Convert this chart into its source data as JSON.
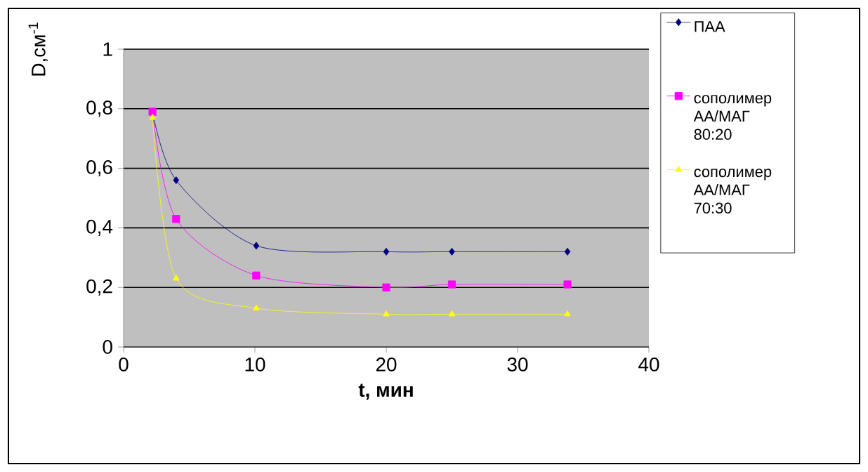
{
  "chart_data": {
    "type": "line",
    "xlabel": "t, мин",
    "ylabel": "D,см$^{-1}$",
    "xlim": [
      0,
      40
    ],
    "xticks": [
      0,
      10,
      20,
      30,
      40
    ],
    "ylim": [
      0,
      1
    ],
    "yticks": [
      0,
      {
        "value": 0.2,
        "label": "0,2"
      },
      {
        "value": 0.4,
        "label": "0,4"
      },
      {
        "value": 0.6,
        "label": "0,6"
      },
      {
        "value": 0.8,
        "label": "0,8"
      },
      1
    ],
    "grid": "y",
    "legend": "right",
    "series": [
      {
        "name": "ПАА",
        "color": "#000080",
        "marker": "diamond",
        "x": [
          2.2,
          4,
          10.1,
          20,
          25,
          33.8
        ],
        "values": [
          0.79,
          0.56,
          0.34,
          0.32,
          0.32,
          0.32
        ]
      },
      {
        "name": "сополимер АА/МАГ 80:20",
        "color": "#ff00ff",
        "marker": "square",
        "x": [
          2.2,
          4,
          10.1,
          20,
          25,
          33.8
        ],
        "values": [
          0.79,
          0.43,
          0.24,
          0.2,
          0.21,
          0.21
        ]
      },
      {
        "name": "сополимер АА/МАГ 70:30",
        "color": "#ffff00",
        "marker": "triangle",
        "x": [
          2.2,
          4,
          10.1,
          20,
          25,
          33.8
        ],
        "values": [
          0.77,
          0.23,
          0.13,
          0.11,
          0.11,
          0.11
        ]
      }
    ]
  }
}
